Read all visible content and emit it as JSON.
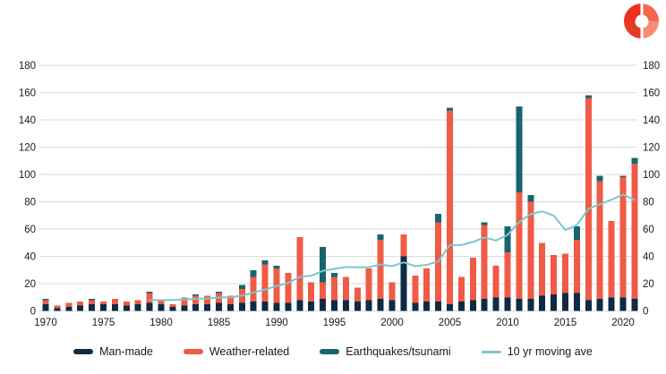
{
  "page": {
    "background": "#ffffff",
    "logo": "swiss-re-logo"
  },
  "legend": {
    "items": [
      {
        "label": "Man-made",
        "color": "#0e2b45",
        "swatch": "bar"
      },
      {
        "label": "Weather-related",
        "color": "#ef5b45",
        "swatch": "bar"
      },
      {
        "label": "Earthquakes/tsunami",
        "color": "#17656f",
        "swatch": "bar"
      },
      {
        "label": "10 yr moving ave",
        "color": "#7ac7cc",
        "swatch": "line"
      }
    ]
  },
  "chart_data": {
    "type": "bar",
    "subtype": "stacked-bars-with-moving-average-line",
    "title": "",
    "xlabel": "",
    "ylabel": "",
    "ylim": [
      0,
      180
    ],
    "y_ticks": [
      0,
      20,
      40,
      60,
      80,
      100,
      120,
      140,
      160,
      180
    ],
    "y_axis_sides": [
      "left",
      "right"
    ],
    "grid": true,
    "x_tick_years": [
      1970,
      1975,
      1980,
      1985,
      1990,
      1995,
      2000,
      2005,
      2010,
      2015,
      2020
    ],
    "categories": [
      1970,
      1971,
      1972,
      1973,
      1974,
      1975,
      1976,
      1977,
      1978,
      1979,
      1980,
      1981,
      1982,
      1983,
      1984,
      1985,
      1986,
      1987,
      1988,
      1989,
      1990,
      1991,
      1992,
      1993,
      1994,
      1995,
      1996,
      1997,
      1998,
      1999,
      2000,
      2001,
      2002,
      2003,
      2004,
      2005,
      2006,
      2007,
      2008,
      2009,
      2010,
      2011,
      2012,
      2013,
      2014,
      2015,
      2016,
      2017,
      2018,
      2019,
      2020,
      2021
    ],
    "series": [
      {
        "name": "Man-made",
        "color": "#0e2b45",
        "values": [
          5,
          2,
          3,
          4,
          5,
          5,
          5,
          4,
          5,
          6,
          5,
          3,
          4,
          5,
          5,
          6,
          5,
          6,
          7,
          7,
          6,
          6,
          8,
          7,
          9,
          8,
          8,
          7,
          8,
          9,
          8,
          40,
          6,
          7,
          7,
          5,
          7,
          8,
          9,
          10,
          10,
          9,
          9,
          11,
          12,
          13,
          13,
          8,
          9,
          10,
          10,
          9
        ]
      },
      {
        "name": "Weather-related",
        "color": "#ef5b45",
        "values": [
          3,
          2,
          3,
          3,
          3,
          2,
          4,
          3,
          3,
          7,
          3,
          2,
          6,
          6,
          6,
          7,
          6,
          10,
          18,
          27,
          25,
          22,
          46,
          14,
          12,
          17,
          17,
          10,
          23,
          43,
          13,
          16,
          20,
          24,
          58,
          142,
          18,
          31,
          54,
          23,
          33,
          78,
          71,
          39,
          29,
          29,
          39,
          148,
          86,
          56,
          88,
          99
        ]
      },
      {
        "name": "Earthquakes/tsunami",
        "color": "#17656f",
        "values": [
          1,
          0,
          0,
          0,
          1,
          0,
          0,
          0,
          0,
          1,
          0,
          0,
          0,
          1,
          0,
          1,
          0,
          3,
          5,
          3,
          2,
          0,
          0,
          0,
          26,
          3,
          0,
          0,
          0,
          4,
          0,
          0,
          0,
          0,
          6,
          2,
          0,
          0,
          2,
          0,
          19,
          63,
          5,
          0,
          0,
          0,
          10,
          2,
          4,
          0,
          1,
          4
        ]
      }
    ],
    "line_series": {
      "name": "10 yr moving ave",
      "color": "#7ac7cc",
      "values": [
        null,
        null,
        null,
        null,
        null,
        null,
        null,
        null,
        null,
        8.0,
        7.9,
        8.0,
        8.4,
        8.9,
        9.1,
        9.8,
        10.0,
        11.2,
        13.4,
        15.7,
        18.2,
        20.5,
        24.9,
        25.8,
        29.4,
        30.8,
        32.2,
        32.0,
        32.1,
        34.0,
        32.8,
        35.6,
        32.8,
        33.8,
        36.2,
        48.3,
        48.3,
        50.5,
        53.9,
        51.6,
        55.7,
        65.1,
        71.0,
        72.9,
        69.9,
        59.2,
        62.9,
        74.8,
        78.2,
        81.5,
        85.2,
        81.4
      ]
    },
    "legend_position": "bottom",
    "colors": {
      "grid": "#dadada",
      "axis_text": "#181821",
      "background": "#ffffff"
    }
  }
}
